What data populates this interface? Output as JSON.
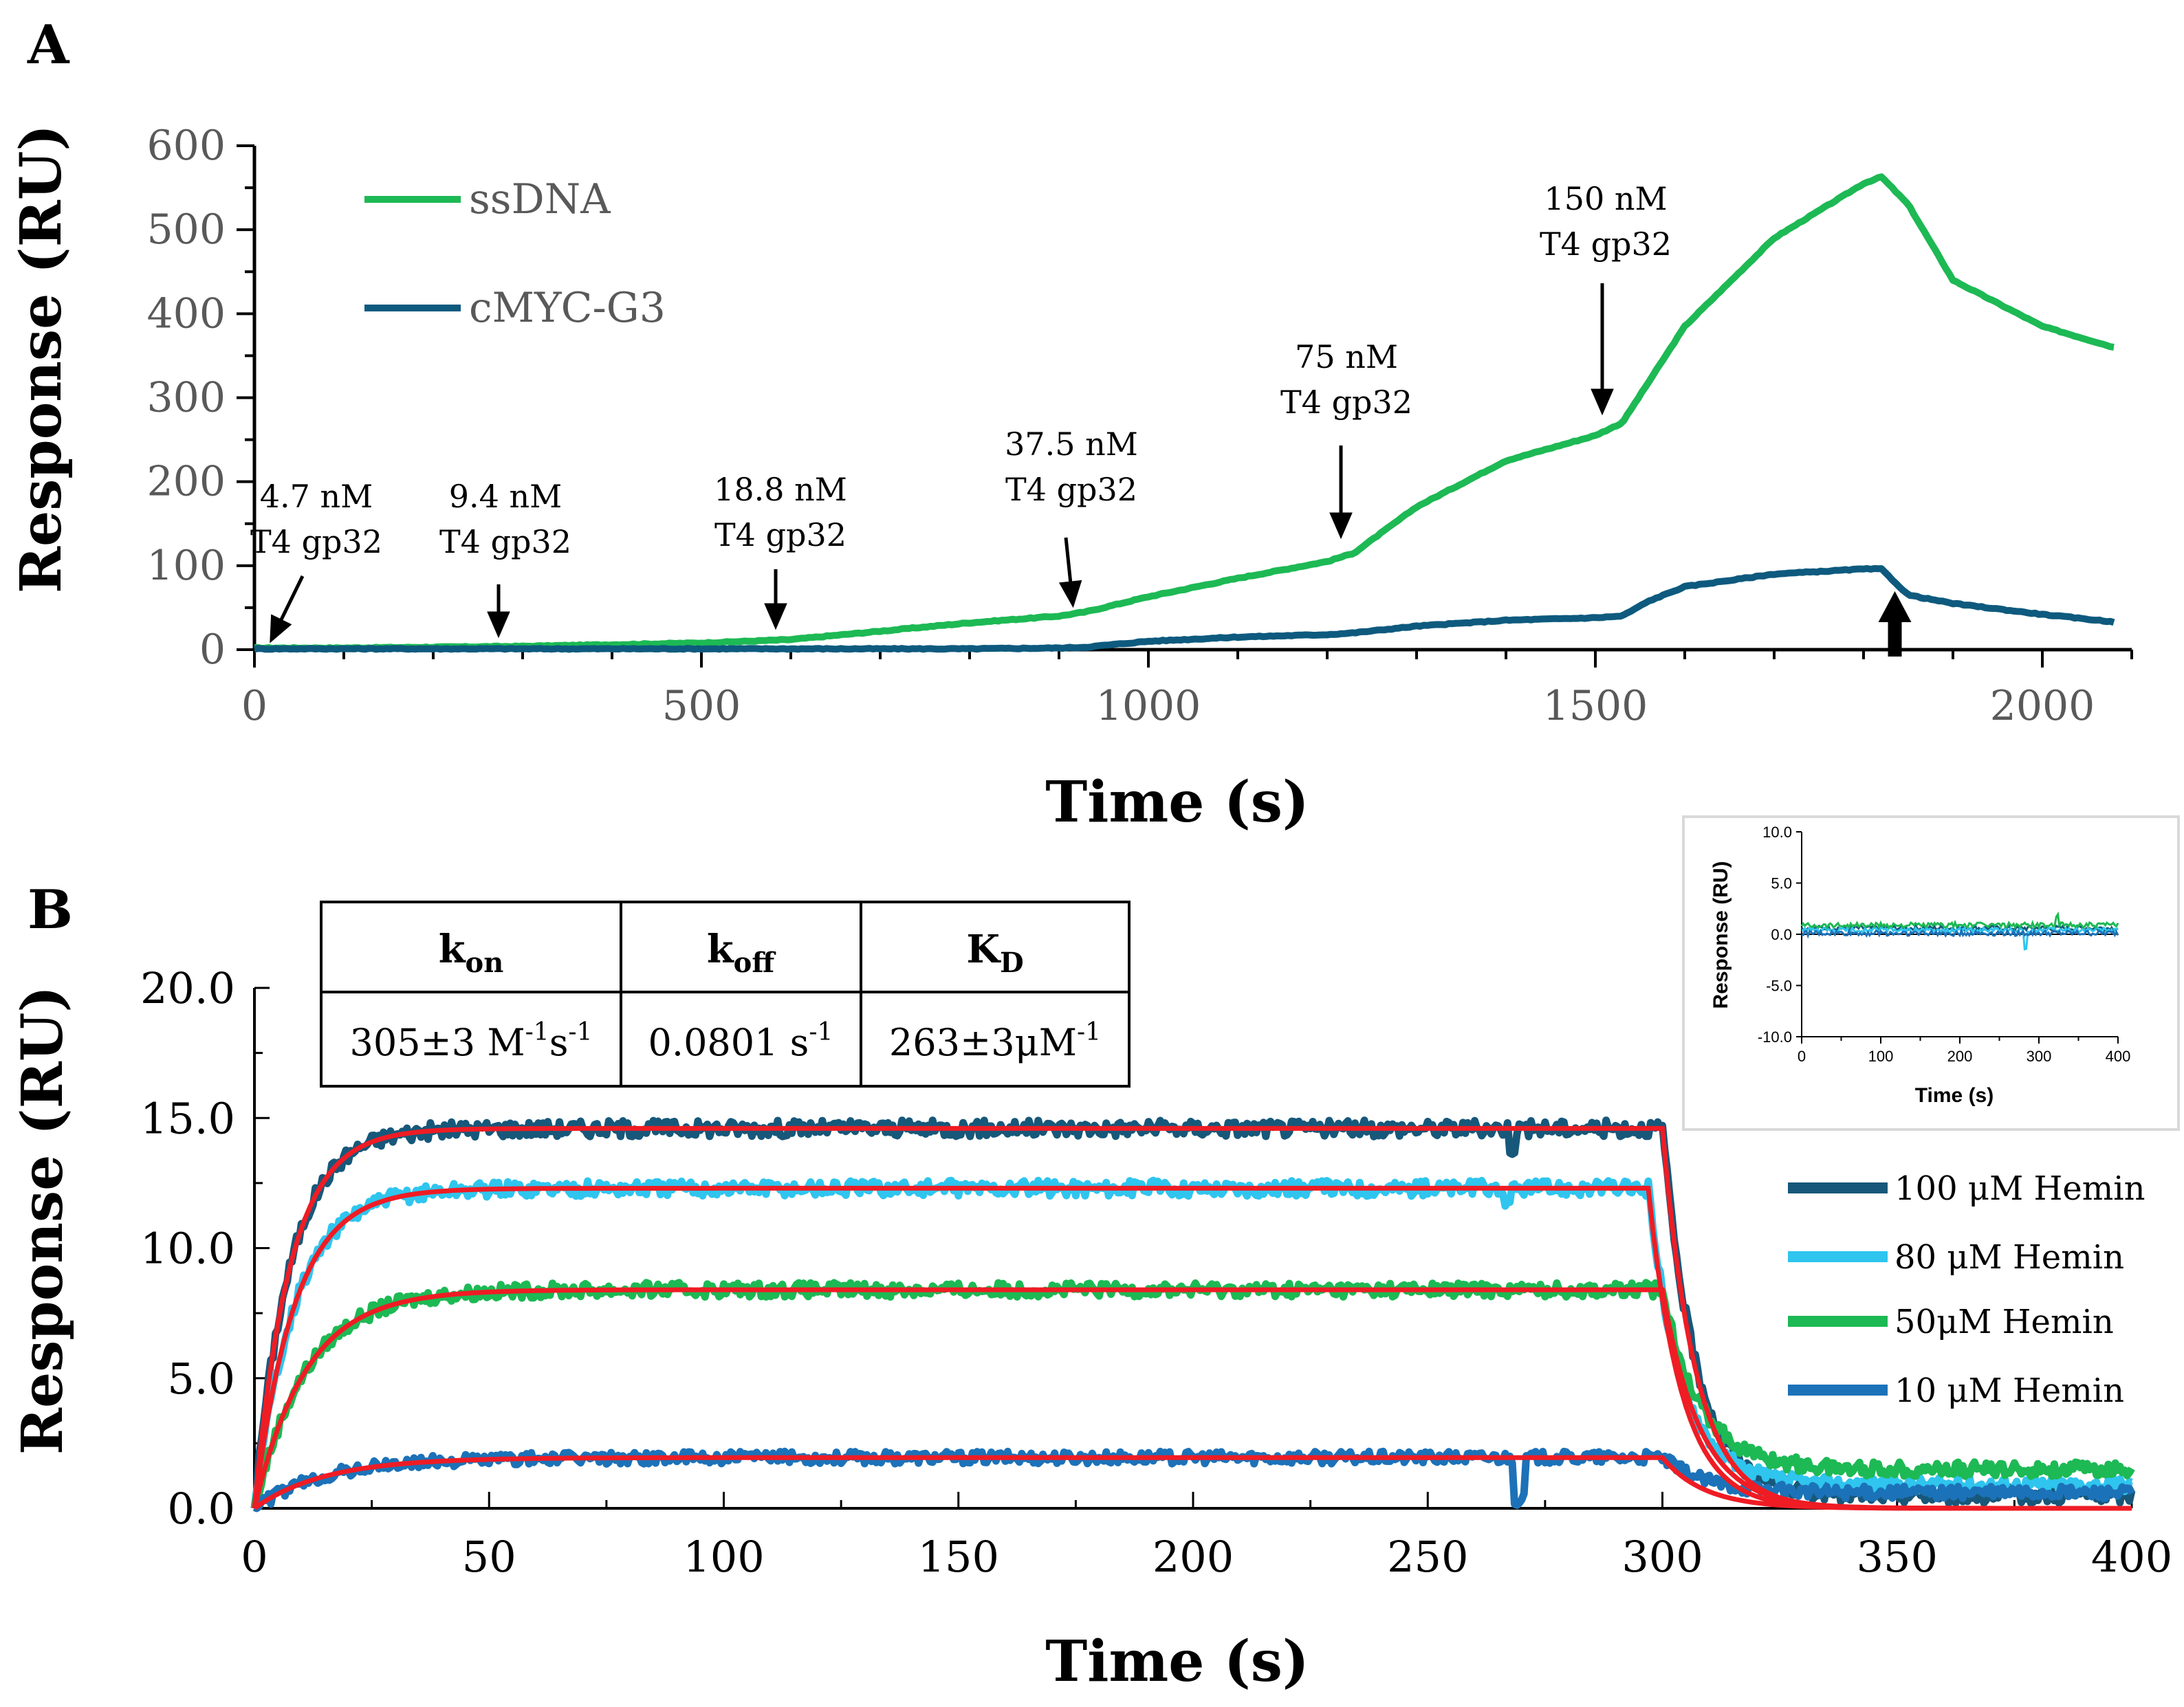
{
  "chart_data": [
    {
      "type": "line",
      "panel_label": "A",
      "xlabel": "Time (s)",
      "ylabel": "Response (RU)",
      "xlim": [
        0,
        2100
      ],
      "ylim": [
        0,
        600
      ],
      "x_ticks": [
        "0",
        "500",
        "1000",
        "1500",
        "2000"
      ],
      "y_ticks": [
        "0",
        "100",
        "200",
        "300",
        "400",
        "500",
        "600"
      ],
      "legend": [
        "ssDNA",
        "cMYC-G3"
      ],
      "series": [
        {
          "name": "ssDNA",
          "color": "#1db954",
          "x": [
            0,
            100,
            200,
            300,
            400,
            500,
            600,
            700,
            800,
            900,
            930,
            1000,
            1100,
            1200,
            1230,
            1300,
            1400,
            1500,
            1530,
            1600,
            1700,
            1800,
            1820,
            1850,
            1900,
            2000,
            2080
          ],
          "y": [
            2,
            2,
            3,
            4,
            6,
            8,
            12,
            22,
            32,
            40,
            45,
            63,
            85,
            105,
            115,
            170,
            225,
            255,
            270,
            385,
            490,
            555,
            563,
            530,
            440,
            385,
            360
          ]
        },
        {
          "name": "cMYC-G3",
          "color": "#0e5a7e",
          "x": [
            0,
            100,
            200,
            300,
            400,
            500,
            600,
            700,
            800,
            900,
            930,
            1000,
            1100,
            1200,
            1230,
            1300,
            1400,
            1500,
            1530,
            1560,
            1600,
            1700,
            1800,
            1820,
            1850,
            1900,
            2000,
            2080
          ],
          "y": [
            1,
            1,
            1,
            1,
            1,
            1,
            1,
            1,
            1,
            2,
            3,
            10,
            15,
            18,
            20,
            28,
            35,
            38,
            40,
            58,
            75,
            90,
            96,
            96,
            65,
            55,
            42,
            33
          ]
        }
      ],
      "annotations": [
        {
          "line1": "4.7 nM",
          "line2": "T4 gp32",
          "x": 0,
          "y": 5
        },
        {
          "line1": "9.4 nM",
          "line2": "T4 gp32",
          "x": 280,
          "y": 5
        },
        {
          "line1": "18.8 nM",
          "line2": "T4 gp32",
          "x": 585,
          "y": 8
        },
        {
          "line1": "37.5 nM",
          "line2": "T4 gp32",
          "x": 915,
          "y": 42
        },
        {
          "line1": "75 nM",
          "line2": "T4 gp32",
          "x": 1225,
          "y": 110
        },
        {
          "line1": "150 nM",
          "line2": "T4 gp32",
          "x": 1515,
          "y": 262
        }
      ],
      "dissociation_arrow_x": 1835
    },
    {
      "type": "line",
      "panel_label": "B",
      "xlabel": "Time (s)",
      "ylabel": "Response (RU)",
      "xlim": [
        0,
        400
      ],
      "ylim": [
        0,
        20
      ],
      "x_ticks": [
        "0",
        "50",
        "100",
        "150",
        "200",
        "250",
        "300",
        "350",
        "400"
      ],
      "y_ticks": [
        "0.0",
        "5.0",
        "10.0",
        "15.0",
        "20.0"
      ],
      "series": [
        {
          "name": "100 μM Hemin",
          "color": "#17587a",
          "plateau": 14.6,
          "tau": 7.5,
          "t_end": 300,
          "tau_off": 7,
          "tail": 0.5
        },
        {
          "name": "80 μM Hemin",
          "color": "#2fc5ee",
          "plateau": 12.3,
          "tau": 8.5,
          "t_end": 297,
          "tau_off": 7,
          "tail": 0.9
        },
        {
          "name": "50μM Hemin",
          "color": "#1db954",
          "plateau": 8.4,
          "tau": 11,
          "t_end": 300,
          "tau_off": 8,
          "tail": 1.5
        },
        {
          "name": "10 μM Hemin",
          "color": "#1c72b8",
          "plateau": 1.95,
          "tau": 15,
          "t_end": 300,
          "tau_off": 9,
          "tail": 0.6
        }
      ],
      "fit_color": "#ef1c24",
      "kinetics_table": {
        "headers": {
          "kon_main": "k",
          "kon_sub": "on",
          "koff_main": "k",
          "koff_sub": "off",
          "kd_main": "K",
          "kd_sub": "D"
        },
        "values": {
          "kon_text": "305±3 M",
          "kon_exp1": "-1",
          "kon_mid": "s",
          "kon_exp2": "-1",
          "koff_text": "0.0801 s",
          "koff_exp": "-1",
          "kd_text": "263±3μM",
          "kd_exp": "-1"
        }
      },
      "inset": {
        "xlabel": "Time (s)",
        "ylabel": "Response (RU)",
        "xlim": [
          0,
          400
        ],
        "ylim": [
          -10,
          10
        ],
        "x_ticks": [
          "0",
          "100",
          "200",
          "300",
          "400"
        ],
        "y_ticks": [
          "10.0",
          "5.0",
          "0.0",
          "-5.0",
          "-10.0"
        ]
      }
    }
  ]
}
